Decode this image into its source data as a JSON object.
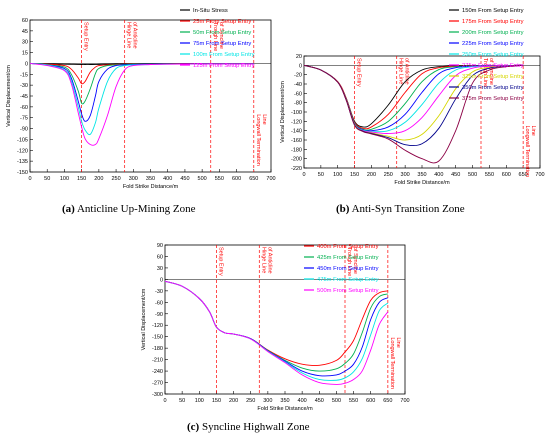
{
  "panels": [
    {
      "caption_letter": "(a)",
      "caption_text": "Anticline Up-Mining Zone",
      "chart_data": {
        "type": "line",
        "xlabel": "Fold Strike Distance/m",
        "ylabel": "Vertical Displacement/cm",
        "xlim": [
          0,
          700
        ],
        "ylim": [
          -150,
          60
        ],
        "xticks": [
          0,
          50,
          100,
          150,
          200,
          250,
          300,
          350,
          400,
          450,
          500,
          550,
          600,
          650,
          700
        ],
        "yticks": [
          60,
          45,
          30,
          15,
          0,
          -15,
          -30,
          -45,
          -60,
          -75,
          -90,
          -105,
          -120,
          -135,
          -150
        ],
        "grid": false,
        "legend_position": "top-right",
        "annotations": [
          {
            "text": "Setup Entry",
            "x": 150
          },
          {
            "text": "Hinge Line of Anticline",
            "x": 275
          },
          {
            "text": "Trough Line of Syncline",
            "x": 525
          },
          {
            "text": "Longwall Termination Line",
            "x": 650
          }
        ],
        "x": [
          0,
          50,
          100,
          120,
          140,
          150,
          160,
          175,
          190,
          200,
          225,
          250,
          275,
          300,
          350,
          400,
          450,
          500,
          550,
          600,
          650
        ],
        "series": [
          {
            "name": "In-Situ Stress",
            "color": "#000000",
            "values": [
              0,
              -0.5,
              -1,
              -1.2,
              -1.4,
              -1.5,
              -1.5,
              -1.5,
              -1.4,
              -1.3,
              -1,
              -0.8,
              -0.6,
              -0.5,
              -0.4,
              -0.3,
              -0.2,
              -0.2,
              -0.2,
              -0.2,
              -0.2
            ]
          },
          {
            "name": "25m From Setup Entry",
            "color": "#ff0000",
            "values": [
              0,
              -1,
              -3,
              -8,
              -20,
              -28,
              -25,
              -12,
              -5,
              -3,
              -2,
              -1.5,
              -1,
              -0.8,
              -0.6,
              -0.5,
              -0.4,
              -0.3,
              -0.3,
              -0.3,
              -0.3
            ]
          },
          {
            "name": "50m From Setup Entry",
            "color": "#00b050",
            "values": [
              0,
              -2,
              -5,
              -15,
              -38,
              -55,
              -52,
              -35,
              -14,
              -7,
              -3,
              -2,
              -1.5,
              -1,
              -0.8,
              -0.6,
              -0.5,
              -0.4,
              -0.4,
              -0.4,
              -0.4
            ]
          },
          {
            "name": "75m From Setup Entry",
            "color": "#0000ff",
            "values": [
              0,
              -2,
              -7,
              -20,
              -52,
              -70,
              -80,
              -72,
              -45,
              -25,
              -8,
              -3,
              -2,
              -1.5,
              -1,
              -0.8,
              -0.6,
              -0.5,
              -0.5,
              -0.5,
              -0.5
            ]
          },
          {
            "name": "100m From Setup Entry",
            "color": "#00e5e5",
            "values": [
              0,
              -2,
              -9,
              -24,
              -60,
              -80,
              -92,
              -98,
              -82,
              -62,
              -25,
              -7,
              -3,
              -2,
              -1.5,
              -1,
              -0.8,
              -0.6,
              -0.6,
              -0.6,
              -0.6
            ]
          },
          {
            "name": "125m From Setup Entry",
            "color": "#ff00ff",
            "values": [
              0,
              -3,
              -10,
              -28,
              -68,
              -88,
              -104,
              -112,
              -112,
              -104,
              -72,
              -32,
              -9,
              -3,
              -1.5,
              -1,
              -0.8,
              -0.7,
              -0.7,
              -0.7,
              -0.7
            ]
          }
        ]
      }
    },
    {
      "caption_letter": "(b)",
      "caption_text": "Anti-Syn Transition Zone",
      "chart_data": {
        "type": "line",
        "xlabel": "Fold Strike Distance/m",
        "ylabel": "Vertical Displacement/cm",
        "xlim": [
          0,
          700
        ],
        "ylim": [
          -220,
          20
        ],
        "xticks": [
          0,
          50,
          100,
          150,
          200,
          250,
          300,
          350,
          400,
          450,
          500,
          550,
          600,
          650,
          700
        ],
        "yticks": [
          20,
          0,
          -20,
          -40,
          -60,
          -80,
          -100,
          -120,
          -140,
          -160,
          -180,
          -200,
          -220
        ],
        "grid": false,
        "legend_position": "top-right",
        "annotations": [
          {
            "text": "Setup Entry",
            "x": 150
          },
          {
            "text": "Hinge Line of Anticline",
            "x": 275
          },
          {
            "text": "Trough Line of Syncline",
            "x": 525
          },
          {
            "text": "Longwall Termination Line",
            "x": 650
          }
        ],
        "x": [
          0,
          50,
          100,
          125,
          150,
          175,
          200,
          250,
          300,
          350,
          400,
          450,
          500,
          550,
          600,
          650
        ],
        "series": [
          {
            "name": "150m From Setup Entry",
            "color": "#000000",
            "values": [
              0,
              -10,
              -35,
              -70,
              -120,
              -132,
              -125,
              -85,
              -35,
              -10,
              -3,
              -1,
              -0.5,
              -0.3,
              -0.2,
              0
            ]
          },
          {
            "name": "175m From Setup Entry",
            "color": "#ff0000",
            "values": [
              0,
              -10,
              -35,
              -70,
              -122,
              -135,
              -132,
              -105,
              -58,
              -18,
              -5,
              -2,
              -1,
              -0.5,
              -0.3,
              0
            ]
          },
          {
            "name": "200m From Setup Entry",
            "color": "#00b050",
            "values": [
              0,
              -10,
              -36,
              -72,
              -124,
              -137,
              -137,
              -120,
              -82,
              -35,
              -9,
              -3,
              -1.5,
              -1,
              -0.5,
              0
            ]
          },
          {
            "name": "225m From Setup Entry",
            "color": "#0000ff",
            "values": [
              0,
              -10,
              -36,
              -73,
              -125,
              -138,
              -140,
              -132,
              -105,
              -58,
              -18,
              -5,
              -2,
              -1,
              -0.5,
              0
            ]
          },
          {
            "name": "250m From Setup Entry",
            "color": "#00e5e5",
            "values": [
              0,
              -10,
              -36,
              -73,
              -126,
              -139,
              -142,
              -140,
              -122,
              -84,
              -38,
              -10,
              -3,
              -1.5,
              -1,
              0
            ]
          },
          {
            "name": "275m From Setup Entry",
            "color": "#ff00ff",
            "values": [
              0,
              -10,
              -36,
              -74,
              -127,
              -140,
              -143,
              -146,
              -140,
              -112,
              -65,
              -22,
              -6,
              -2,
              -1,
              0
            ]
          },
          {
            "name": "325m From Setup Entry",
            "color": "#d6d600",
            "values": [
              0,
              -10,
              -36,
              -74,
              -127,
              -141,
              -145,
              -152,
              -160,
              -148,
              -108,
              -50,
              -14,
              -4,
              -1.5,
              0
            ]
          },
          {
            "name": "350m From Setup Entry",
            "color": "#00008b",
            "values": [
              0,
              -10,
              -36,
              -74,
              -128,
              -141,
              -146,
              -155,
              -170,
              -168,
              -135,
              -72,
              -22,
              -6,
              -2,
              0
            ]
          },
          {
            "name": "375m From Setup Entry",
            "color": "#8b0045",
            "values": [
              0,
              -10,
              -36,
              -74,
              -128,
              -142,
              -147,
              -158,
              -182,
              -200,
              -205,
              -140,
              -38,
              -10,
              -3,
              0
            ]
          }
        ]
      }
    },
    {
      "caption_letter": "(c)",
      "caption_text": "Syncline Highwall Zone",
      "chart_data": {
        "type": "line",
        "xlabel": "Fold Strike Distance/m",
        "ylabel": "Vertical Displacement/cm",
        "xlim": [
          0,
          700
        ],
        "ylim": [
          -300,
          90
        ],
        "xticks": [
          0,
          50,
          100,
          150,
          200,
          250,
          300,
          350,
          400,
          450,
          500,
          550,
          600,
          650,
          700
        ],
        "yticks": [
          90,
          60,
          30,
          0,
          -30,
          -60,
          -90,
          -120,
          -150,
          -180,
          -210,
          -240,
          -270,
          -300
        ],
        "grid": false,
        "legend_position": "top-right",
        "annotations": [
          {
            "text": "Setup Entry",
            "x": 150
          },
          {
            "text": "Hinge Line of Anticline",
            "x": 275
          },
          {
            "text": "Trough Line of Syncline",
            "x": 525
          },
          {
            "text": "Longwall Termination Line",
            "x": 650
          }
        ],
        "x": [
          0,
          50,
          100,
          130,
          150,
          175,
          200,
          250,
          300,
          350,
          400,
          450,
          500,
          525,
          550,
          575,
          600,
          625,
          650
        ],
        "series": [
          {
            "name": "400m From Setup Entry",
            "color": "#ff0000",
            "values": [
              -5,
              -18,
              -50,
              -85,
              -125,
              -140,
              -143,
              -155,
              -185,
              -208,
              -222,
              -225,
              -212,
              -190,
              -160,
              -105,
              -55,
              -35,
              -30
            ]
          },
          {
            "name": "425m From Setup Entry",
            "color": "#00b050",
            "values": [
              -5,
              -18,
              -50,
              -85,
              -125,
              -140,
              -143,
              -155,
              -186,
              -212,
              -232,
              -240,
              -234,
              -220,
              -195,
              -140,
              -75,
              -45,
              -38
            ]
          },
          {
            "name": "450m From Setup Entry",
            "color": "#0000ff",
            "values": [
              -5,
              -18,
              -50,
              -85,
              -125,
              -140,
              -143,
              -155,
              -187,
              -214,
              -240,
              -252,
              -250,
              -240,
              -222,
              -178,
              -105,
              -60,
              -48
            ]
          },
          {
            "name": "475m From Setup Entry",
            "color": "#00e5e5",
            "values": [
              -5,
              -18,
              -50,
              -85,
              -125,
              -140,
              -143,
              -156,
              -188,
              -216,
              -245,
              -262,
              -264,
              -258,
              -242,
              -208,
              -145,
              -82,
              -62
            ]
          },
          {
            "name": "500m From Setup Entry",
            "color": "#ff00ff",
            "values": [
              -5,
              -18,
              -50,
              -85,
              -125,
              -140,
              -143,
              -156,
              -189,
              -218,
              -250,
              -270,
              -275,
              -272,
              -262,
              -240,
              -185,
              -118,
              -85
            ]
          }
        ]
      }
    }
  ]
}
